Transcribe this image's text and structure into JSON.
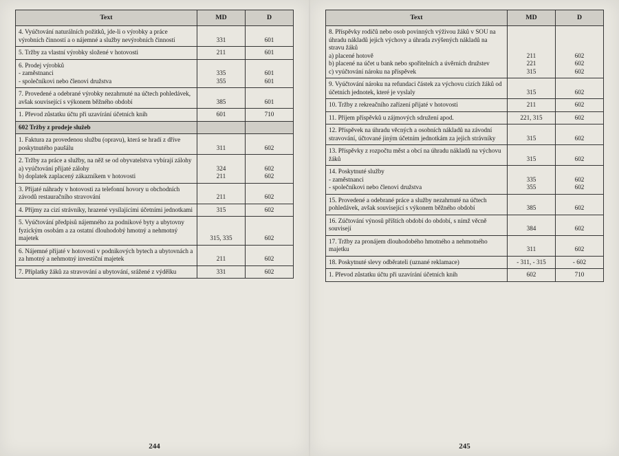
{
  "headers": {
    "text": "Text",
    "md": "MD",
    "d": "D"
  },
  "left": {
    "page_number": "244",
    "rows": [
      {
        "type": "row",
        "text": "4.  Vyúčtování naturálních požitků, jde-li o výrobky a práce výrobních činností a o nájemné a služby nevýrobních činností",
        "md": "331",
        "d": "601"
      },
      {
        "type": "row",
        "text": "5.  Tržby za vlastní výrobky složené v hotovosti",
        "md": "211",
        "d": "601"
      },
      {
        "type": "row",
        "text": "6.  Prodej výrobků\n-  zaměstnanci\n-  společníkovi nebo členovi družstva",
        "md": "335\n355",
        "d": "601\n601"
      },
      {
        "type": "row",
        "text": "7.  Provedené a odebrané výrobky nezahrnuté na účtech pohledávek, avšak související s výkonem běžného období",
        "md": "385",
        "d": "601"
      },
      {
        "type": "row",
        "text": "1.  Převod zůstatku účtu při uzavírání účetních knih",
        "md": "601",
        "d": "710"
      },
      {
        "type": "section",
        "text": "602 Tržby z prodeje služeb",
        "md": "",
        "d": ""
      },
      {
        "type": "row",
        "text": "1.  Faktura za provedenou službu (opravu), která se hradí z dříve poskytnutého paušálu",
        "md": "311",
        "d": "602"
      },
      {
        "type": "row",
        "text": "2.  Tržby za práce a služby, na něž se od obyvatelstva vybírají zálohy\na)  vyúčtování přijaté zálohy\nb)  doplatek zaplacený zákazníkem v hotovosti",
        "md": "324\n211",
        "d": "602\n602"
      },
      {
        "type": "row",
        "text": "3.  Přijaté náhrady v hotovosti za telefonní hovory u obchodních závodů restauračního stravování",
        "md": "211",
        "d": "602"
      },
      {
        "type": "row",
        "text": "4.  Příjmy za cizí strávníky, hrazené vysílajícími účetními jednotkami",
        "md": "315",
        "d": "602"
      },
      {
        "type": "row",
        "text": "5.  Vyúčtování předpisů nájemného za podnikové byty a ubytovny fyzickým osobám a za ostatní dlouhodobý hmotný a nehmotný majetek",
        "md": "315, 335",
        "d": "602"
      },
      {
        "type": "row",
        "text": "6.  Nájemné přijaté v hotovosti v podnikových bytech a ubytovnách a za hmotný a nehmotný investiční majetek",
        "md": "211",
        "d": "602"
      },
      {
        "type": "row",
        "text": "7.  Příplatky žáků za stravování a ubytování, srážené z výdělku",
        "md": "331",
        "d": "602"
      }
    ]
  },
  "right": {
    "page_number": "245",
    "rows": [
      {
        "type": "row",
        "text": "8.  Příspěvky rodičů nebo osob povinných výživou žáků v SOU na úhradu nákladů jejich výchovy a úhrada zvýšených nákladů na stravu žáků\na)  placené hotově\nb)  placené na účet u bank nebo spořitelních a úvěrních družstev\nc)  vyúčtování nároku na příspěvek",
        "md": "211\n221\n315",
        "d": "602\n602\n602"
      },
      {
        "type": "row",
        "text": "9.  Vyúčtování nároku na refundaci částek za výchovu cizích žáků od účetních jednotek, které je vyslaly",
        "md": "315",
        "d": "602"
      },
      {
        "type": "row",
        "text": "10. Tržby z rekreačního zařízení přijaté v hotovosti",
        "md": "211",
        "d": "602"
      },
      {
        "type": "row",
        "text": "11. Příjem příspěvků u zájmových sdružení apod.",
        "md": "221, 315",
        "d": "602"
      },
      {
        "type": "row",
        "text": "12. Příspěvek na úhradu věcných a osobních nákladů na závodní stravování, účtované jiným účetním jednotkám za jejich strávníky",
        "md": "315",
        "d": "602"
      },
      {
        "type": "row",
        "text": "13. Příspěvky z rozpočtu měst a obcí na úhradu nákladů na výchovu žáků",
        "md": "315",
        "d": "602"
      },
      {
        "type": "row",
        "text": "14. Poskytnuté služby\n-  zaměstnanci\n-  společníkovi nebo členovi družstva",
        "md": "335\n355",
        "d": "602\n602"
      },
      {
        "type": "row",
        "text": "15. Provedené a odebrané práce a služby nezahrnuté na účtech pohledávek, avšak související s výkonem běžného období",
        "md": "385",
        "d": "602"
      },
      {
        "type": "row",
        "text": "16. Zúčtování výnosů příštích období do období, s nímž věcně souvisejí",
        "md": "384",
        "d": "602"
      },
      {
        "type": "row",
        "text": "17. Tržby za pronájem dlouhodobého hmotného a nehmotného majetku",
        "md": "311",
        "d": "602"
      },
      {
        "type": "row",
        "text": "18. Poskytnuté slevy odběrateli (uznané reklamace)",
        "md": "- 311, - 315",
        "d": "- 602"
      },
      {
        "type": "row",
        "text": "1.  Převod zůstatku účtu při uzavírání účetních knih",
        "md": "602",
        "d": "710"
      }
    ]
  }
}
